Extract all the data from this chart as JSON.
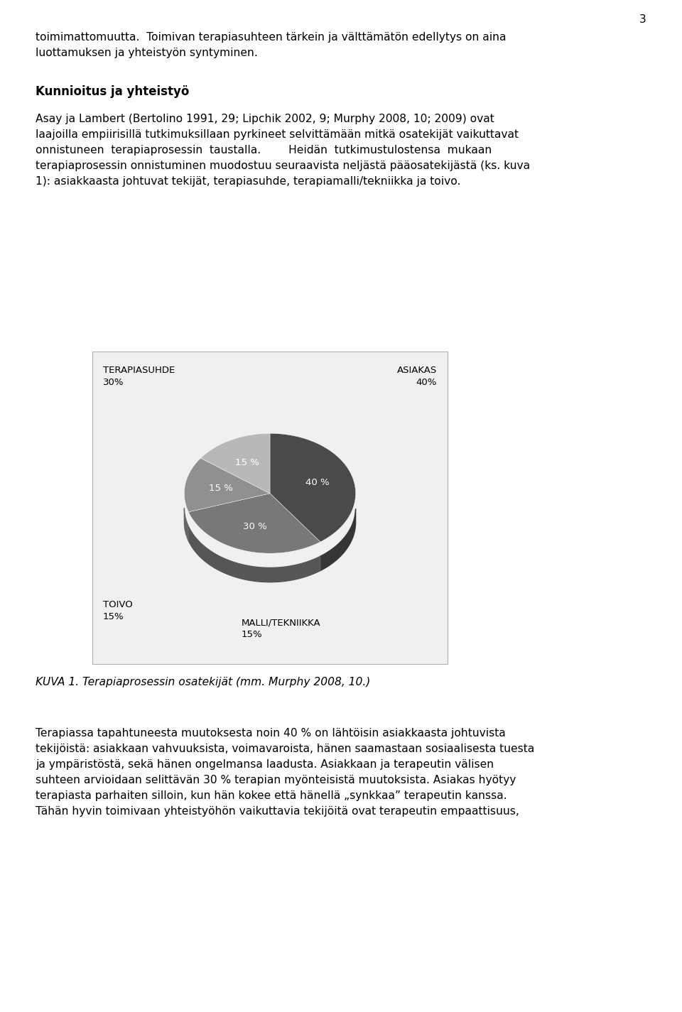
{
  "page_number": "3",
  "pie_slices": [
    40,
    30,
    15,
    15
  ],
  "pie_pcts": [
    "40 %",
    "30 %",
    "15 %",
    "15 %"
  ],
  "pie_colors_top": [
    "#4a4a4a",
    "#787878",
    "#909090",
    "#b8b8b8"
  ],
  "pie_colors_side": [
    "#333333",
    "#606060",
    "#787878",
    "#a0a0a0"
  ],
  "pie_startangle": 90,
  "caption": "KUVA 1. Terapiaprosessin osatekijät (mm. Murphy 2008, 10.)",
  "bg_color": "#ffffff",
  "text_color": "#000000",
  "box_bg": "#f0f0f0",
  "box_border": "#b0b0b0"
}
